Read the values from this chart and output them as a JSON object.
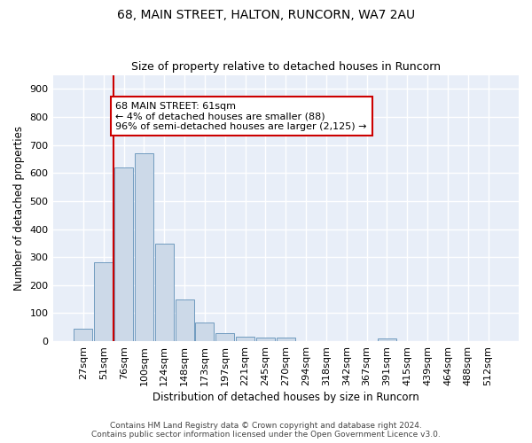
{
  "title": "68, MAIN STREET, HALTON, RUNCORN, WA7 2AU",
  "subtitle": "Size of property relative to detached houses in Runcorn",
  "xlabel": "Distribution of detached houses by size in Runcorn",
  "ylabel": "Number of detached properties",
  "bar_color": "#ccd9e8",
  "bar_edge_color": "#6090b8",
  "categories": [
    "27sqm",
    "51sqm",
    "76sqm",
    "100sqm",
    "124sqm",
    "148sqm",
    "173sqm",
    "197sqm",
    "221sqm",
    "245sqm",
    "270sqm",
    "294sqm",
    "318sqm",
    "342sqm",
    "367sqm",
    "391sqm",
    "415sqm",
    "439sqm",
    "464sqm",
    "488sqm",
    "512sqm"
  ],
  "values": [
    43,
    280,
    620,
    670,
    348,
    148,
    68,
    30,
    17,
    12,
    12,
    0,
    0,
    0,
    0,
    10,
    0,
    0,
    0,
    0,
    0
  ],
  "ylim": [
    0,
    950
  ],
  "yticks": [
    0,
    100,
    200,
    300,
    400,
    500,
    600,
    700,
    800,
    900
  ],
  "vline_x": 1.5,
  "vline_color": "#cc0000",
  "annotation_line1": "68 MAIN STREET: 61sqm",
  "annotation_line2": "← 4% of detached houses are smaller (88)",
  "annotation_line3": "96% of semi-detached houses are larger (2,125) →",
  "annotation_box_color": "#ffffff",
  "annotation_border_color": "#cc0000",
  "background_color": "#e8eef8",
  "grid_color": "#ffffff",
  "footer1": "Contains HM Land Registry data © Crown copyright and database right 2024.",
  "footer2": "Contains public sector information licensed under the Open Government Licence v3.0."
}
